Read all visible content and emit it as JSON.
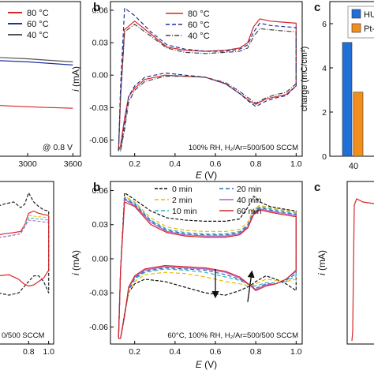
{
  "figure": {
    "panel_letters": [
      "b",
      "c",
      "b",
      "c"
    ]
  },
  "chart_data": [
    {
      "id": "a_top_partial",
      "type": "line",
      "xlabel": "",
      "ylabel": "",
      "xlim": [
        2550,
        3700
      ],
      "ylim": [
        0,
        1
      ],
      "xticks": [
        3000,
        3600
      ],
      "legend": {
        "position": "top-right",
        "entries": [
          "80 °C",
          "60 °C",
          "40 °C"
        ]
      },
      "annotation": "@ 0.8 V",
      "series": [
        {
          "name": "80 °C",
          "color": "#d62728",
          "x": [
            2550,
            3000,
            3300,
            3600
          ],
          "y": [
            0.33,
            0.32,
            0.315,
            0.31
          ]
        },
        {
          "name": "60 °C",
          "color": "#1f2fa0",
          "x": [
            2550,
            3000,
            3300,
            3600
          ],
          "y": [
            0.62,
            0.61,
            0.6,
            0.59
          ]
        },
        {
          "name": "40 °C",
          "color": "#555555",
          "x": [
            2550,
            3000,
            3300,
            3600
          ],
          "y": [
            0.64,
            0.63,
            0.62,
            0.61
          ]
        }
      ]
    },
    {
      "id": "b_top",
      "type": "line",
      "xlabel": "E (V)",
      "ylabel": "i (mA)",
      "xlim": [
        0.08,
        1.03
      ],
      "ylim": [
        -0.075,
        0.068
      ],
      "xticks": [
        0.2,
        0.4,
        0.6,
        0.8,
        1.0
      ],
      "yticks": [
        -0.06,
        -0.03,
        0.0,
        0.03,
        0.06
      ],
      "legend": {
        "position": "top-center",
        "entries": [
          "80 °C",
          "60 °C",
          "40 °C"
        ]
      },
      "annotation": "100% RH, H2/Ar=500/500 SCCM",
      "series": [
        {
          "name": "80 °C",
          "color": "#d62728",
          "dash": "",
          "x": [
            0.12,
            0.13,
            0.15,
            0.2,
            0.28,
            0.36,
            0.45,
            0.55,
            0.65,
            0.72,
            0.76,
            0.79,
            0.82,
            0.87,
            0.93,
            1.0,
            1.0,
            0.95,
            0.9,
            0.85,
            0.8,
            0.77,
            0.72,
            0.65,
            0.55,
            0.45,
            0.35,
            0.25,
            0.2,
            0.17,
            0.15,
            0.13,
            0.12
          ],
          "y": [
            -0.07,
            -0.02,
            0.042,
            0.05,
            0.038,
            0.026,
            0.023,
            0.022,
            0.023,
            0.025,
            0.03,
            0.045,
            0.052,
            0.05,
            0.049,
            0.048,
            -0.01,
            -0.018,
            -0.02,
            -0.022,
            -0.027,
            -0.024,
            -0.017,
            -0.008,
            -0.002,
            -0.001,
            0.0,
            -0.004,
            -0.012,
            -0.02,
            -0.04,
            -0.065,
            -0.07
          ]
        },
        {
          "name": "60 °C",
          "color": "#1f2fa0",
          "dash": "5,3",
          "x": [
            0.12,
            0.13,
            0.15,
            0.2,
            0.28,
            0.36,
            0.45,
            0.55,
            0.65,
            0.72,
            0.76,
            0.79,
            0.82,
            0.87,
            0.93,
            1.0,
            1.0,
            0.95,
            0.9,
            0.85,
            0.8,
            0.77,
            0.72,
            0.65,
            0.55,
            0.45,
            0.35,
            0.25,
            0.2,
            0.17,
            0.15,
            0.13,
            0.12
          ],
          "y": [
            -0.07,
            -0.01,
            0.062,
            0.055,
            0.04,
            0.028,
            0.024,
            0.022,
            0.022,
            0.024,
            0.028,
            0.04,
            0.048,
            0.046,
            0.045,
            0.044,
            -0.01,
            -0.019,
            -0.021,
            -0.024,
            -0.029,
            -0.025,
            -0.017,
            -0.008,
            -0.002,
            0.0,
            0.002,
            -0.002,
            -0.01,
            -0.02,
            -0.045,
            -0.07,
            -0.07
          ]
        },
        {
          "name": "40 °C",
          "color": "#444444",
          "dash": "6,2,1,2",
          "x": [
            0.12,
            0.13,
            0.15,
            0.2,
            0.28,
            0.36,
            0.45,
            0.55,
            0.65,
            0.72,
            0.76,
            0.79,
            0.82,
            0.87,
            0.93,
            1.0,
            1.0,
            0.95,
            0.9,
            0.85,
            0.8,
            0.77,
            0.72,
            0.65,
            0.55,
            0.45,
            0.35,
            0.25,
            0.2,
            0.17,
            0.15,
            0.13,
            0.12
          ],
          "y": [
            -0.07,
            -0.02,
            0.04,
            0.047,
            0.036,
            0.025,
            0.021,
            0.02,
            0.021,
            0.022,
            0.025,
            0.036,
            0.043,
            0.042,
            0.041,
            0.04,
            -0.008,
            -0.016,
            -0.018,
            -0.021,
            -0.026,
            -0.022,
            -0.015,
            -0.007,
            -0.002,
            -0.001,
            -0.001,
            -0.006,
            -0.014,
            -0.025,
            -0.05,
            -0.07,
            -0.07
          ]
        }
      ]
    },
    {
      "id": "c_top_partial",
      "type": "bar",
      "ylabel": "charge (mC/cm²)",
      "ylim": [
        0,
        7
      ],
      "yticks": [
        0,
        2,
        4,
        6
      ],
      "categories": [
        "40"
      ],
      "legend": {
        "position": "top-right",
        "entries": [
          "HU",
          "Pt-"
        ]
      },
      "series": [
        {
          "name": "HU",
          "color": "#1f6fd6",
          "values": [
            5.15
          ]
        },
        {
          "name": "Pt-",
          "color": "#f28e1c",
          "values": [
            2.9
          ]
        }
      ]
    },
    {
      "id": "a_bottom_partial",
      "type": "line",
      "xlim": [
        0.45,
        1.05
      ],
      "ylim": [
        -0.075,
        0.068
      ],
      "xticks": [
        0.8,
        1.0
      ],
      "annotation": "0/500 SCCM",
      "series": [
        {
          "name": "0 min",
          "color": "#222222",
          "dash": "4,2",
          "x": [
            0.45,
            0.55,
            0.65,
            0.72,
            0.76,
            0.8,
            0.85,
            0.9,
            0.95,
            1.0,
            1.0,
            0.95,
            0.9,
            0.85,
            0.8,
            0.75,
            0.7,
            0.6,
            0.5,
            0.45
          ],
          "y": [
            0.045,
            0.048,
            0.05,
            0.045,
            0.048,
            0.058,
            0.05,
            0.046,
            0.043,
            0.042,
            -0.03,
            -0.02,
            -0.015,
            -0.015,
            -0.02,
            -0.025,
            -0.03,
            -0.032,
            -0.03,
            -0.03
          ]
        },
        {
          "name": "60 min",
          "color": "#d62728",
          "dash": "",
          "x": [
            0.45,
            0.55,
            0.65,
            0.72,
            0.76,
            0.8,
            0.85,
            0.9,
            0.95,
            1.0,
            1.0,
            0.95,
            0.9,
            0.85,
            0.8,
            0.75,
            0.7,
            0.6,
            0.5,
            0.45
          ],
          "y": [
            0.02,
            0.022,
            0.023,
            0.024,
            0.03,
            0.04,
            0.042,
            0.04,
            0.039,
            0.038,
            -0.01,
            -0.017,
            -0.02,
            -0.023,
            -0.024,
            -0.022,
            -0.018,
            -0.014,
            -0.015,
            -0.015
          ]
        }
      ]
    },
    {
      "id": "b_bottom",
      "type": "line",
      "xlabel": "E (V)",
      "ylabel": "i (mA)",
      "xlim": [
        0.08,
        1.03
      ],
      "ylim": [
        -0.075,
        0.068
      ],
      "xticks": [
        0.2,
        0.4,
        0.6,
        0.8,
        1.0
      ],
      "yticks": [
        -0.06,
        -0.03,
        0.0,
        0.03,
        0.06
      ],
      "legend": {
        "position": "top-right",
        "entries": [
          "0 min",
          "2 min",
          "10 min",
          "20 min",
          "40 min",
          "60 min"
        ]
      },
      "annotation": "60°C, 100% RH, H2/Ar=500/500 SCCM",
      "series": [
        {
          "name": "0 min",
          "color": "#111111",
          "dash": "4,2",
          "x": [
            0.12,
            0.13,
            0.15,
            0.2,
            0.28,
            0.36,
            0.45,
            0.55,
            0.65,
            0.72,
            0.76,
            0.79,
            0.82,
            0.87,
            0.93,
            1.0,
            1.0,
            0.95,
            0.9,
            0.85,
            0.8,
            0.77,
            0.72,
            0.65,
            0.55,
            0.45,
            0.35,
            0.25,
            0.2,
            0.17,
            0.15,
            0.13,
            0.12
          ],
          "y": [
            -0.07,
            -0.01,
            0.058,
            0.052,
            0.042,
            0.036,
            0.034,
            0.033,
            0.033,
            0.035,
            0.045,
            0.055,
            0.05,
            0.046,
            0.044,
            0.042,
            -0.028,
            -0.022,
            -0.018,
            -0.015,
            -0.02,
            -0.024,
            -0.028,
            -0.032,
            -0.03,
            -0.025,
            -0.02,
            -0.018,
            -0.022,
            -0.03,
            -0.048,
            -0.07,
            -0.07
          ]
        },
        {
          "name": "2 min",
          "color": "#f5b400",
          "dash": "5,3",
          "x": [
            0.12,
            0.13,
            0.15,
            0.2,
            0.28,
            0.36,
            0.45,
            0.55,
            0.65,
            0.72,
            0.76,
            0.79,
            0.82,
            0.87,
            0.93,
            1.0,
            1.0,
            0.95,
            0.9,
            0.85,
            0.8,
            0.77,
            0.72,
            0.65,
            0.55,
            0.45,
            0.35,
            0.25,
            0.2,
            0.17,
            0.15,
            0.13,
            0.12
          ],
          "y": [
            -0.07,
            -0.01,
            0.055,
            0.05,
            0.036,
            0.028,
            0.025,
            0.024,
            0.024,
            0.026,
            0.032,
            0.044,
            0.047,
            0.045,
            0.043,
            0.041,
            -0.018,
            -0.02,
            -0.019,
            -0.018,
            -0.022,
            -0.024,
            -0.022,
            -0.02,
            -0.016,
            -0.013,
            -0.012,
            -0.014,
            -0.02,
            -0.03,
            -0.05,
            -0.07,
            -0.07
          ]
        },
        {
          "name": "10 min",
          "color": "#26b5c9",
          "dash": "5,3",
          "x": [
            0.12,
            0.13,
            0.15,
            0.2,
            0.28,
            0.36,
            0.45,
            0.55,
            0.65,
            0.72,
            0.76,
            0.79,
            0.82,
            0.87,
            0.93,
            1.0,
            1.0,
            0.95,
            0.9,
            0.85,
            0.8,
            0.77,
            0.72,
            0.65,
            0.55,
            0.45,
            0.35,
            0.25,
            0.2,
            0.17,
            0.15,
            0.13,
            0.12
          ],
          "y": [
            -0.07,
            -0.01,
            0.054,
            0.049,
            0.034,
            0.026,
            0.023,
            0.022,
            0.022,
            0.024,
            0.03,
            0.042,
            0.046,
            0.044,
            0.042,
            0.04,
            -0.015,
            -0.02,
            -0.021,
            -0.021,
            -0.024,
            -0.023,
            -0.019,
            -0.016,
            -0.012,
            -0.01,
            -0.009,
            -0.012,
            -0.018,
            -0.028,
            -0.05,
            -0.07,
            -0.07
          ]
        },
        {
          "name": "20 min",
          "color": "#2a6fb0",
          "dash": "5,3",
          "x": [
            0.12,
            0.13,
            0.15,
            0.2,
            0.28,
            0.36,
            0.45,
            0.55,
            0.65,
            0.72,
            0.76,
            0.79,
            0.82,
            0.87,
            0.93,
            1.0,
            1.0,
            0.95,
            0.9,
            0.85,
            0.8,
            0.77,
            0.72,
            0.65,
            0.55,
            0.45,
            0.35,
            0.25,
            0.2,
            0.17,
            0.15,
            0.13,
            0.12
          ],
          "y": [
            -0.07,
            -0.01,
            0.053,
            0.048,
            0.033,
            0.025,
            0.022,
            0.021,
            0.021,
            0.023,
            0.029,
            0.041,
            0.045,
            0.043,
            0.041,
            0.039,
            -0.013,
            -0.019,
            -0.022,
            -0.022,
            -0.026,
            -0.023,
            -0.018,
            -0.014,
            -0.01,
            -0.009,
            -0.008,
            -0.011,
            -0.017,
            -0.027,
            -0.05,
            -0.07,
            -0.07
          ]
        },
        {
          "name": "40 min",
          "color": "#b05fd0",
          "dash": "",
          "x": [
            0.12,
            0.13,
            0.15,
            0.2,
            0.28,
            0.36,
            0.45,
            0.55,
            0.65,
            0.72,
            0.76,
            0.79,
            0.82,
            0.87,
            0.93,
            1.0,
            1.0,
            0.95,
            0.9,
            0.85,
            0.8,
            0.77,
            0.72,
            0.65,
            0.55,
            0.45,
            0.35,
            0.25,
            0.2,
            0.17,
            0.15,
            0.13,
            0.12
          ],
          "y": [
            -0.07,
            -0.01,
            0.052,
            0.047,
            0.032,
            0.024,
            0.021,
            0.02,
            0.02,
            0.022,
            0.028,
            0.04,
            0.044,
            0.042,
            0.04,
            0.038,
            -0.011,
            -0.018,
            -0.022,
            -0.023,
            -0.027,
            -0.023,
            -0.017,
            -0.012,
            -0.009,
            -0.008,
            -0.007,
            -0.01,
            -0.016,
            -0.026,
            -0.05,
            -0.07,
            -0.07
          ]
        },
        {
          "name": "60 min",
          "color": "#d62728",
          "dash": "",
          "x": [
            0.12,
            0.13,
            0.15,
            0.2,
            0.28,
            0.36,
            0.45,
            0.55,
            0.65,
            0.72,
            0.76,
            0.79,
            0.82,
            0.87,
            0.93,
            1.0,
            1.0,
            0.95,
            0.9,
            0.85,
            0.8,
            0.77,
            0.72,
            0.65,
            0.55,
            0.45,
            0.35,
            0.25,
            0.2,
            0.17,
            0.15,
            0.13,
            0.12
          ],
          "y": [
            -0.07,
            -0.01,
            0.05,
            0.046,
            0.03,
            0.023,
            0.02,
            0.019,
            0.019,
            0.021,
            0.027,
            0.039,
            0.043,
            0.041,
            0.039,
            0.037,
            -0.01,
            -0.018,
            -0.022,
            -0.024,
            -0.028,
            -0.023,
            -0.016,
            -0.011,
            -0.008,
            -0.007,
            -0.006,
            -0.009,
            -0.015,
            -0.025,
            -0.05,
            -0.07,
            -0.07
          ]
        }
      ],
      "arrows": [
        {
          "from": [
            0.6,
            -0.009
          ],
          "to": [
            0.6,
            -0.033
          ]
        },
        {
          "from": [
            0.76,
            -0.038
          ],
          "to": [
            0.78,
            -0.012
          ]
        }
      ]
    },
    {
      "id": "c_bottom_partial",
      "type": "line",
      "ylabel": "i (mA)",
      "series": [
        {
          "name": "",
          "color": "#d62728",
          "x": [
            0.1,
            0.12,
            0.13,
            0.14
          ],
          "y": [
            -0.07,
            -0.07,
            0.01,
            0.05
          ]
        }
      ]
    }
  ]
}
